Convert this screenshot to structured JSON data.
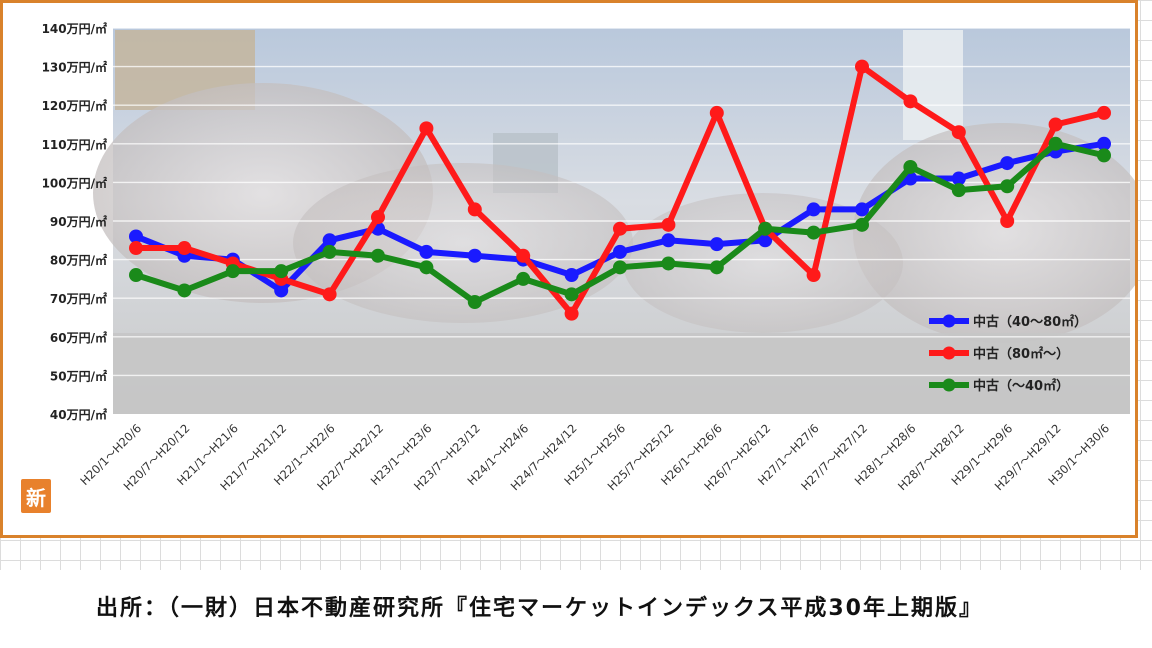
{
  "chart_data": {
    "type": "line",
    "title": "",
    "xlabel": "",
    "ylabel": "",
    "ylim": [
      40,
      140
    ],
    "yticks": [
      "40万円/㎡",
      "50万円/㎡",
      "60万円/㎡",
      "70万円/㎡",
      "80万円/㎡",
      "90万円/㎡",
      "100万円/㎡",
      "110万円/㎡",
      "120万円/㎡",
      "130万円/㎡",
      "140万円/㎡"
    ],
    "ytick_values": [
      40,
      50,
      60,
      70,
      80,
      90,
      100,
      110,
      120,
      130,
      140
    ],
    "grid": true,
    "legend_position": "right",
    "categories": [
      "H20/1～H20/6",
      "H20/7～H20/12",
      "H21/1～H21/6",
      "H21/7～H21/12",
      "H22/1～H22/6",
      "H22/7～H22/12",
      "H23/1～H23/6",
      "H23/7～H23/12",
      "H24/1～H24/6",
      "H24/7～H24/12",
      "H25/1～H25/6",
      "H25/7～H25/12",
      "H26/1～H26/6",
      "H26/7～H26/12",
      "H27/1～H27/6",
      "H27/7～H27/12",
      "H28/1～H28/6",
      "H28/7～H28/12",
      "H29/1～H29/6",
      "H29/7～H29/12",
      "H30/1～H30/6"
    ],
    "series": [
      {
        "name": "中古（40～80㎡）",
        "color": "#1a1aff",
        "values": [
          86,
          81,
          80,
          72,
          85,
          88,
          82,
          81,
          80,
          76,
          82,
          85,
          84,
          85,
          93,
          93,
          101,
          101,
          105,
          108,
          110
        ]
      },
      {
        "name": "中古（80㎡～）",
        "color": "#ff1a1a",
        "values": [
          83,
          83,
          79,
          75,
          71,
          91,
          114,
          93,
          81,
          66,
          88,
          89,
          118,
          88,
          76,
          130,
          121,
          113,
          90,
          115,
          118
        ]
      },
      {
        "name": "中古（～40㎡）",
        "color": "#1a8a1a",
        "values": [
          76,
          72,
          77,
          77,
          82,
          81,
          78,
          69,
          75,
          71,
          78,
          79,
          78,
          88,
          87,
          89,
          104,
          98,
          99,
          110,
          107
        ]
      }
    ]
  },
  "badge_text": "新",
  "source_note": "出所：（一財）日本不動産研究所『住宅マーケットインデックス平成30年上期版』"
}
